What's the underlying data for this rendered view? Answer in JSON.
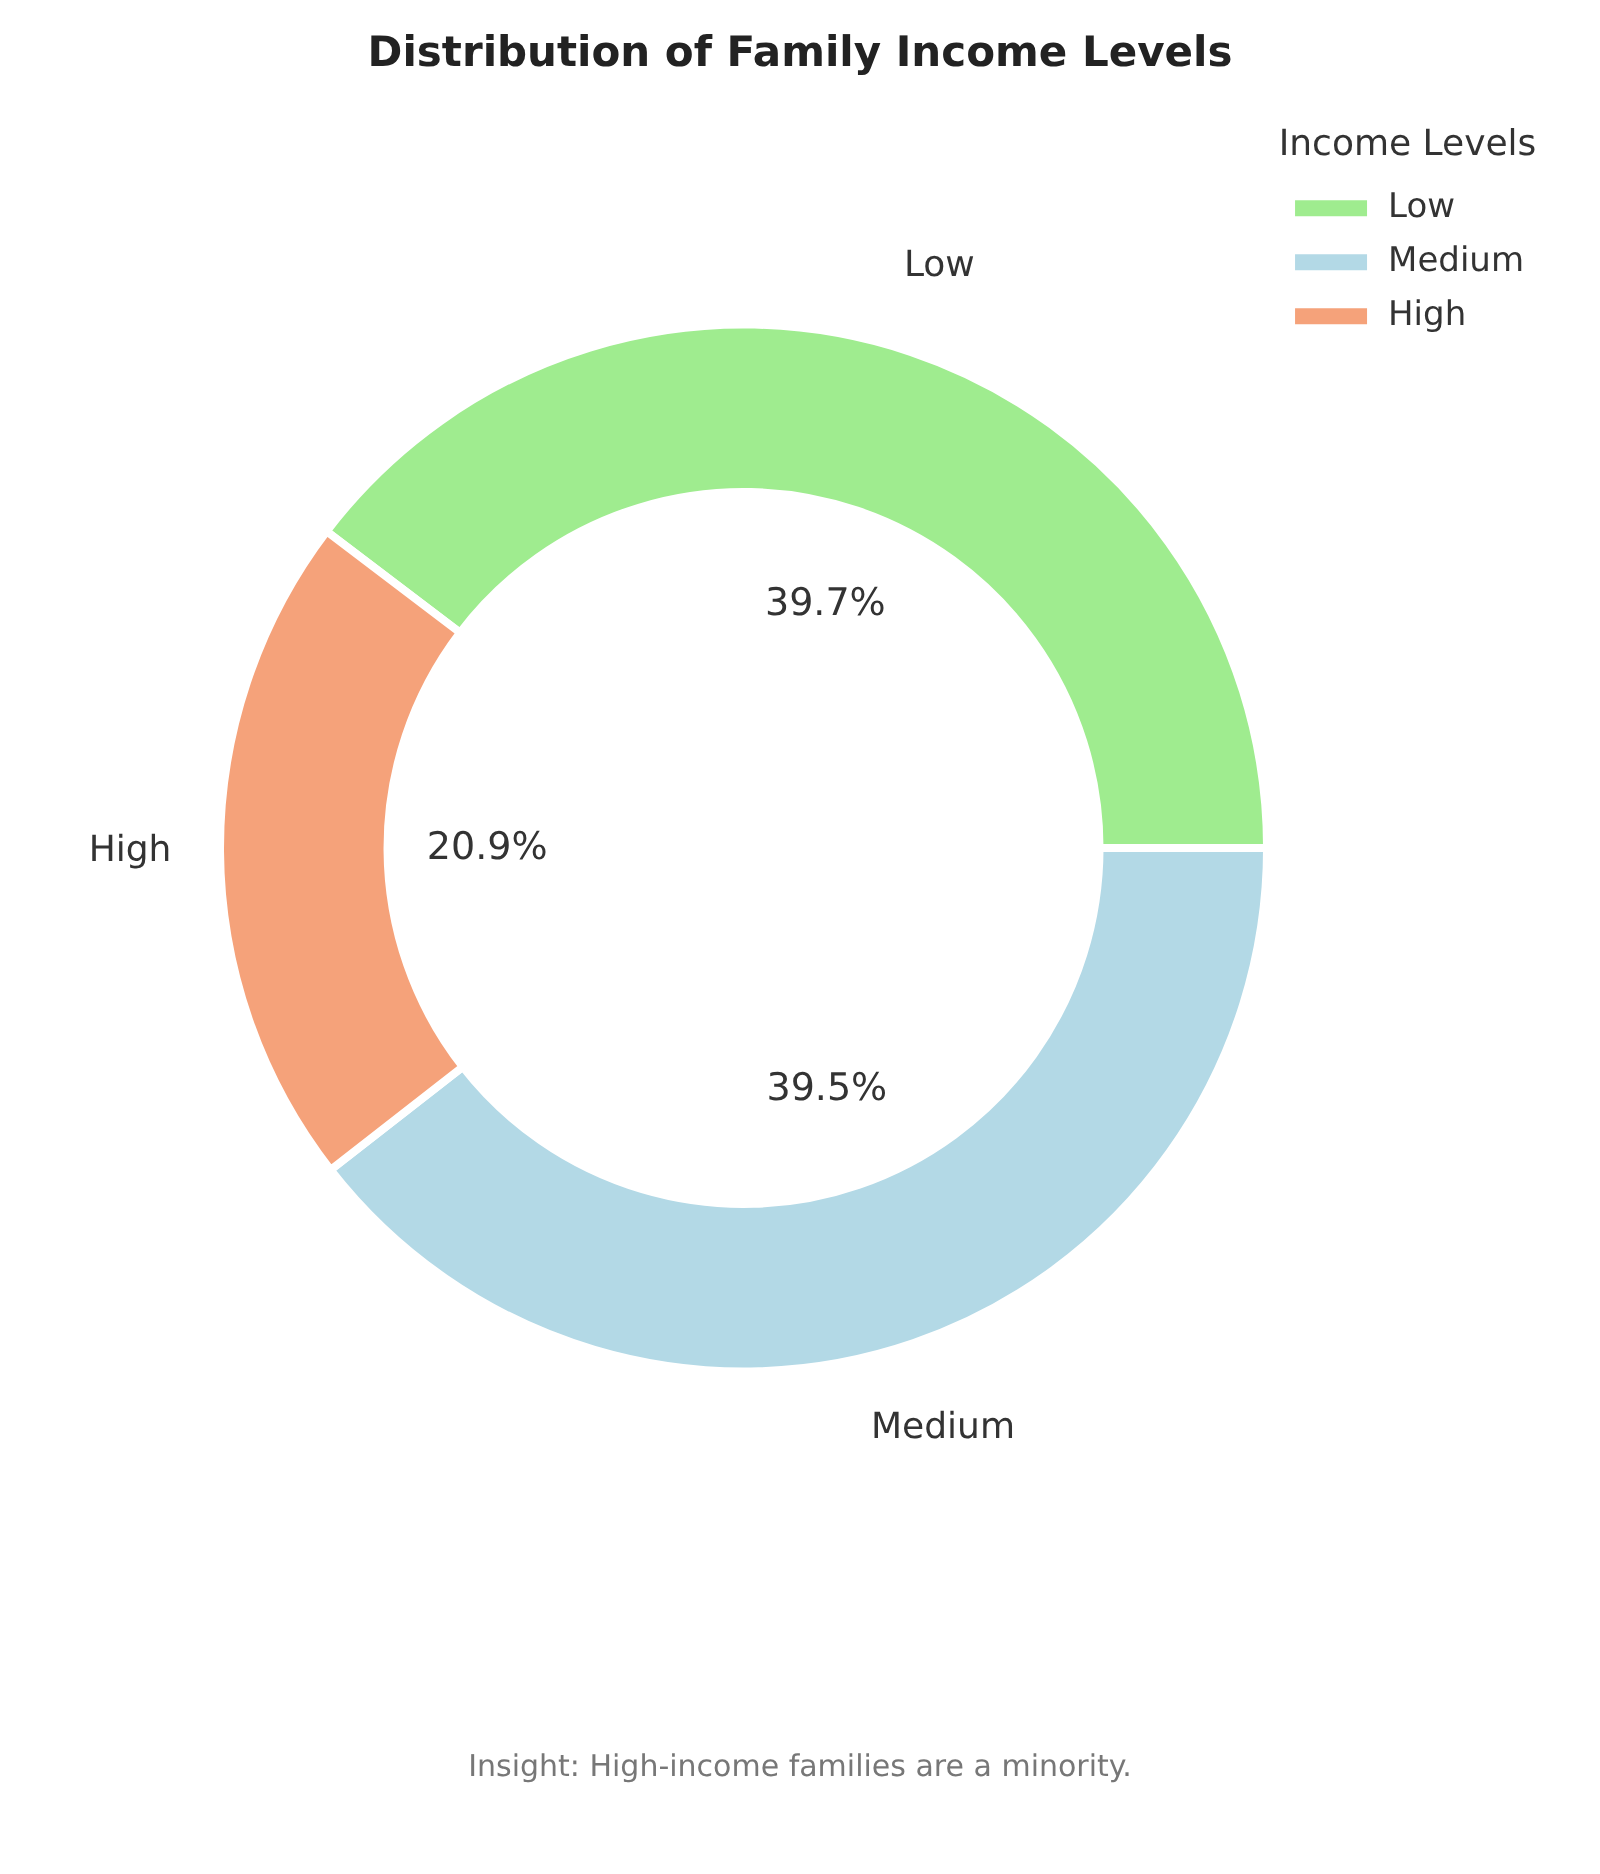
{
  "chart_data": {
    "type": "donut",
    "title": "Distribution of Family Income Levels",
    "legend_title": "Income Levels",
    "legend": "top right",
    "categories": [
      "Low",
      "Medium",
      "High"
    ],
    "values": [
      39.7,
      39.5,
      20.9
    ],
    "colors": [
      "#9fec8f",
      "#b3d9e6",
      "#f5a27a"
    ],
    "value_labels": [
      "39.7%",
      "39.5%",
      "20.9%"
    ],
    "annotations": [
      "Insight: High-income families are a minority."
    ]
  }
}
